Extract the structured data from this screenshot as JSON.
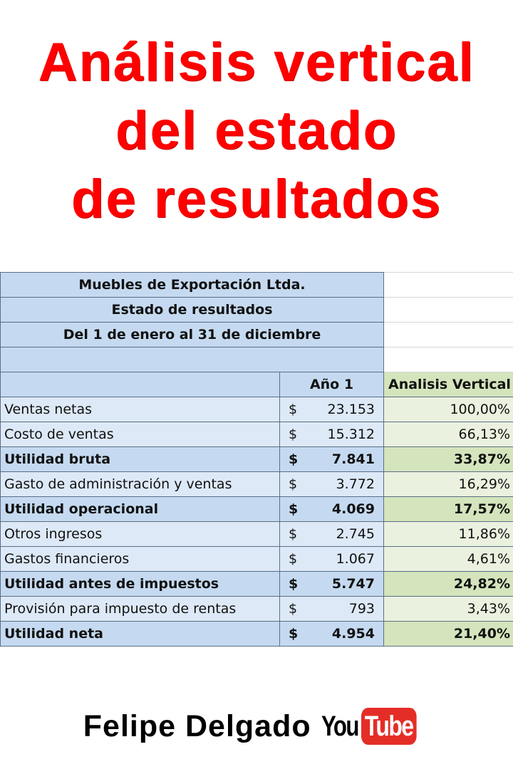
{
  "title": {
    "line1": "Análisis vertical",
    "line2": "del estado",
    "line3": "de resultados"
  },
  "sheet": {
    "company": "Muebles de Exportación Ltda.",
    "statement": "Estado de resultados",
    "period": "Del 1 de enero al 31 de diciembre",
    "col_year": "Año 1",
    "col_analysis": "Analisis Vertical",
    "currency": "$",
    "rows": [
      {
        "label": "Ventas netas",
        "amount": "23.153",
        "pct": "100,00%",
        "bold": false
      },
      {
        "label": "Costo de ventas",
        "amount": "15.312",
        "pct": "66,13%",
        "bold": false
      },
      {
        "label": "Utilidad bruta",
        "amount": "7.841",
        "pct": "33,87%",
        "bold": true
      },
      {
        "label": "Gasto de administración y ventas",
        "amount": "3.772",
        "pct": "16,29%",
        "bold": false
      },
      {
        "label": "Utilidad operacional",
        "amount": "4.069",
        "pct": "17,57%",
        "bold": true
      },
      {
        "label": "Otros ingresos",
        "amount": "2.745",
        "pct": "11,86%",
        "bold": false
      },
      {
        "label": "Gastos financieros",
        "amount": "1.067",
        "pct": "4,61%",
        "bold": false
      },
      {
        "label": "Utilidad antes de impuestos",
        "amount": "5.747",
        "pct": "24,82%",
        "bold": true
      },
      {
        "label": "Provisión para impuesto de rentas",
        "amount": "793",
        "pct": "3,43%",
        "bold": false
      },
      {
        "label": "Utilidad neta",
        "amount": "4.954",
        "pct": "21,40%",
        "bold": true
      }
    ]
  },
  "footer": {
    "author": "Felipe Delgado",
    "logo_you": "You",
    "logo_tube": "Tube"
  },
  "colors": {
    "title_red": "#ff0000",
    "header_blue": "#c5daf0",
    "row_blue": "#dde9f7",
    "analysis_green": "#d4e4bc",
    "analysis_green_light": "#ebf1df",
    "youtube_red": "#e52d27"
  }
}
